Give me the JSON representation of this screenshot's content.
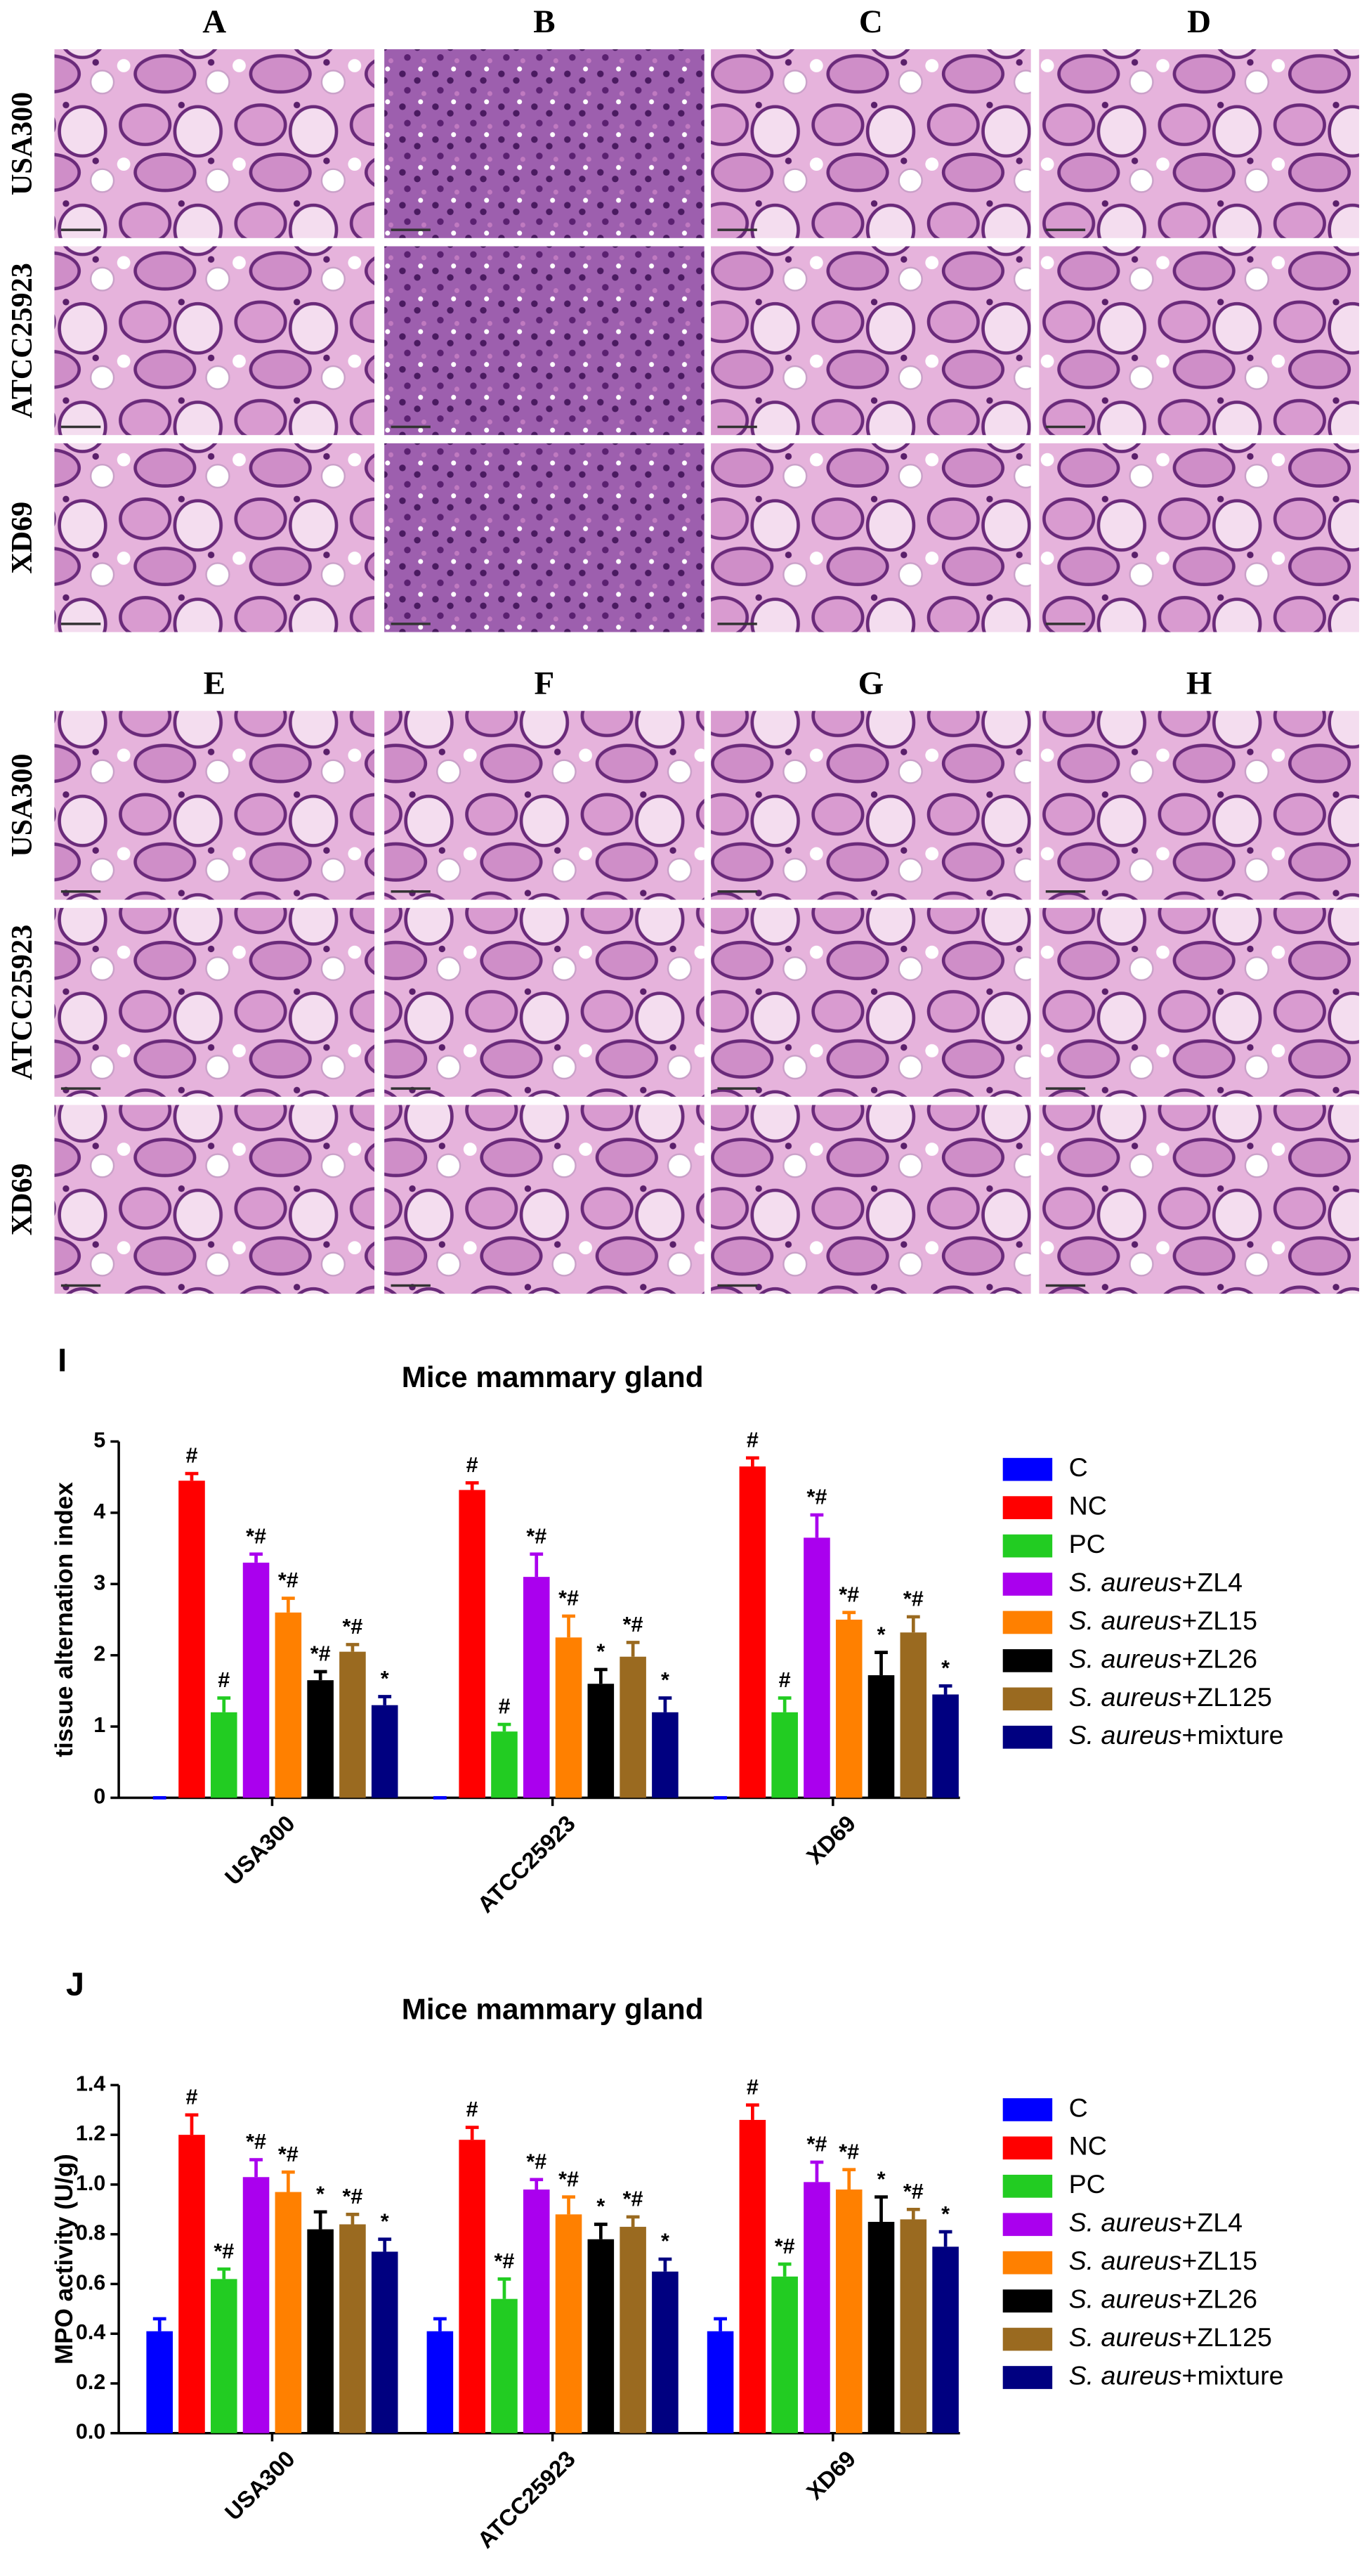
{
  "histology": {
    "groups": [
      {
        "columns": [
          "A",
          "B",
          "C",
          "D"
        ],
        "rows": [
          "USA300",
          "ATCC25923",
          "XD69"
        ]
      },
      {
        "columns": [
          "E",
          "F",
          "G",
          "H"
        ],
        "rows": [
          "USA300",
          "ATCC25923",
          "XD69"
        ]
      }
    ]
  },
  "chart_data": [
    {
      "type": "bar",
      "label": "I",
      "title": "Mice mammary gland",
      "ylabel": "tissue alternation index",
      "categories": [
        "USA300",
        "ATCC25923",
        "XD69"
      ],
      "ylim": [
        0,
        5
      ],
      "yticks": [
        0,
        1,
        2,
        3,
        4,
        5
      ],
      "series": [
        {
          "name": "C",
          "color": "#0000ff",
          "values": [
            0,
            0,
            0
          ],
          "errors": [
            0,
            0,
            0
          ],
          "annotations": [
            null,
            null,
            null
          ]
        },
        {
          "name": "NC",
          "color": "#ff0000",
          "values": [
            4.45,
            4.32,
            4.65
          ],
          "errors": [
            0.1,
            0.1,
            0.12
          ],
          "annotations": [
            "#",
            "#",
            "#"
          ]
        },
        {
          "name": "PC",
          "color": "#22cc22",
          "values": [
            1.2,
            0.93,
            1.2
          ],
          "errors": [
            0.2,
            0.1,
            0.2
          ],
          "annotations": [
            "#",
            "#",
            "#"
          ]
        },
        {
          "name": "S. aureus+ZL4",
          "color": "#aa00ee",
          "values": [
            3.3,
            3.1,
            3.65
          ],
          "errors": [
            0.12,
            0.32,
            0.32
          ],
          "annotations": [
            "*#",
            "*#",
            "*#"
          ]
        },
        {
          "name": "S. aureus+ZL15",
          "color": "#ff8000",
          "values": [
            2.6,
            2.25,
            2.5
          ],
          "errors": [
            0.2,
            0.3,
            0.1
          ],
          "annotations": [
            "*#",
            "*#",
            "*#"
          ]
        },
        {
          "name": "S. aureus+ZL26",
          "color": "#000000",
          "values": [
            1.65,
            1.6,
            1.72
          ],
          "errors": [
            0.12,
            0.2,
            0.32
          ],
          "annotations": [
            "*#",
            "*",
            "*"
          ]
        },
        {
          "name": "S. aureus+ZL125",
          "color": "#9a6a20",
          "values": [
            2.05,
            1.98,
            2.32
          ],
          "errors": [
            0.1,
            0.2,
            0.22
          ],
          "annotations": [
            "*#",
            "*#",
            "*#"
          ]
        },
        {
          "name": "S. aureus+mixture",
          "color": "#000080",
          "values": [
            1.3,
            1.2,
            1.45
          ],
          "errors": [
            0.12,
            0.2,
            0.12
          ],
          "annotations": [
            "*",
            "*",
            "*"
          ]
        }
      ]
    },
    {
      "type": "bar",
      "label": "J",
      "title": "Mice mammary gland",
      "ylabel": "MPO activity (U/g)",
      "categories": [
        "USA300",
        "ATCC25923",
        "XD69"
      ],
      "ylim": [
        0,
        1.4
      ],
      "yticks": [
        {
          "value": 0,
          "label": "0.0"
        },
        0.2,
        0.4,
        0.6,
        0.8,
        {
          "value": 1,
          "label": "1.0"
        },
        1.2,
        1.4
      ],
      "series": [
        {
          "name": "C",
          "color": "#0000ff",
          "values": [
            0.41,
            0.41,
            0.41
          ],
          "errors": [
            0.05,
            0.05,
            0.05
          ],
          "annotations": [
            null,
            null,
            null
          ]
        },
        {
          "name": "NC",
          "color": "#ff0000",
          "values": [
            1.2,
            1.18,
            1.26
          ],
          "errors": [
            0.08,
            0.05,
            0.06
          ],
          "annotations": [
            "#",
            "#",
            "#"
          ]
        },
        {
          "name": "PC",
          "color": "#22cc22",
          "values": [
            0.62,
            0.54,
            0.63
          ],
          "errors": [
            0.04,
            0.08,
            0.05
          ],
          "annotations": [
            "*#",
            "*#",
            "*#"
          ]
        },
        {
          "name": "S. aureus+ZL4",
          "color": "#aa00ee",
          "values": [
            1.03,
            0.98,
            1.01
          ],
          "errors": [
            0.07,
            0.04,
            0.08
          ],
          "annotations": [
            "*#",
            "*#",
            "*#"
          ]
        },
        {
          "name": "S. aureus+ZL15",
          "color": "#ff8000",
          "values": [
            0.97,
            0.88,
            0.98
          ],
          "errors": [
            0.08,
            0.07,
            0.08
          ],
          "annotations": [
            "*#",
            "*#",
            "*#"
          ]
        },
        {
          "name": "S. aureus+ZL26",
          "color": "#000000",
          "values": [
            0.82,
            0.78,
            0.85
          ],
          "errors": [
            0.07,
            0.06,
            0.1
          ],
          "annotations": [
            "*",
            "*",
            "*"
          ]
        },
        {
          "name": "S. aureus+ZL125",
          "color": "#9a6a20",
          "values": [
            0.84,
            0.83,
            0.86
          ],
          "errors": [
            0.04,
            0.04,
            0.04
          ],
          "annotations": [
            "*#",
            "*#",
            "*#"
          ]
        },
        {
          "name": "S. aureus+mixture",
          "color": "#000080",
          "values": [
            0.73,
            0.65,
            0.75
          ],
          "errors": [
            0.05,
            0.05,
            0.06
          ],
          "annotations": [
            "*",
            "*",
            "*"
          ]
        }
      ]
    }
  ]
}
